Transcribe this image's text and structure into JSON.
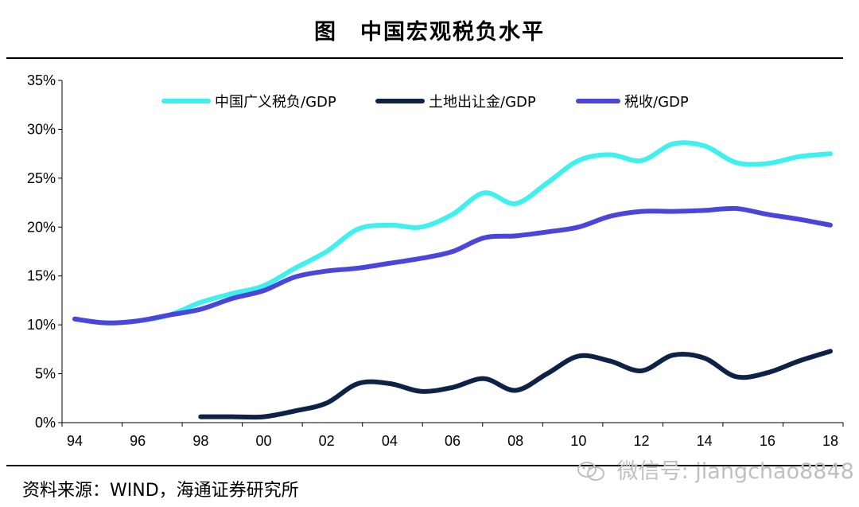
{
  "header": {
    "title": "图　中国宏观税负水平"
  },
  "footer": {
    "source": "资料来源：WIND，海通证券研究所"
  },
  "watermark": {
    "text": "微信号: jiangchao8848",
    "icon": "wechat-icon"
  },
  "colors": {
    "series1": "#3ef0ee",
    "series2": "#0e2147",
    "series3": "#4b46db",
    "axis": "#000000"
  },
  "chart_data": {
    "type": "line",
    "title": "中国宏观税负水平",
    "xlabel": "",
    "ylabel": "",
    "ylim": [
      0,
      35
    ],
    "xlim": [
      1994,
      2018
    ],
    "y_ticks": [
      "0%",
      "5%",
      "10%",
      "15%",
      "20%",
      "25%",
      "30%",
      "35%"
    ],
    "x_ticks": [
      "94",
      "96",
      "98",
      "00",
      "02",
      "04",
      "06",
      "08",
      "10",
      "12",
      "14",
      "16",
      "18"
    ],
    "legend_position": "top",
    "grid": false,
    "series": [
      {
        "name": "中国广义税负/GDP",
        "x": [
          1994,
          1995,
          1996,
          1997,
          1998,
          1999,
          2000,
          2001,
          2002,
          2003,
          2004,
          2005,
          2006,
          2007,
          2008,
          2009,
          2010,
          2011,
          2012,
          2013,
          2014,
          2015,
          2016,
          2017,
          2018
        ],
        "values": [
          10.6,
          10.2,
          10.4,
          11.0,
          12.3,
          13.2,
          14.0,
          15.8,
          17.5,
          19.8,
          20.2,
          20.0,
          21.3,
          23.5,
          22.4,
          24.5,
          26.8,
          27.4,
          26.8,
          28.5,
          28.3,
          26.6,
          26.5,
          27.2,
          27.5
        ]
      },
      {
        "name": "土地出让金/GDP",
        "x": [
          1998,
          1999,
          2000,
          2001,
          2002,
          2003,
          2004,
          2005,
          2006,
          2007,
          2008,
          2009,
          2010,
          2011,
          2012,
          2013,
          2014,
          2015,
          2016,
          2017,
          2018
        ],
        "values": [
          0.6,
          0.6,
          0.6,
          1.2,
          2.0,
          4.0,
          4.0,
          3.2,
          3.6,
          4.5,
          3.3,
          5.0,
          6.8,
          6.3,
          5.3,
          6.9,
          6.6,
          4.7,
          5.1,
          6.3,
          7.3
        ]
      },
      {
        "name": "税收/GDP",
        "x": [
          1994,
          1995,
          1996,
          1997,
          1998,
          1999,
          2000,
          2001,
          2002,
          2003,
          2004,
          2005,
          2006,
          2007,
          2008,
          2009,
          2010,
          2011,
          2012,
          2013,
          2014,
          2015,
          2016,
          2017,
          2018
        ],
        "values": [
          10.6,
          10.2,
          10.4,
          11.0,
          11.6,
          12.7,
          13.5,
          14.9,
          15.5,
          15.8,
          16.3,
          16.8,
          17.5,
          18.9,
          19.1,
          19.5,
          20.0,
          21.1,
          21.6,
          21.6,
          21.7,
          21.9,
          21.3,
          20.8,
          20.2
        ]
      }
    ]
  }
}
